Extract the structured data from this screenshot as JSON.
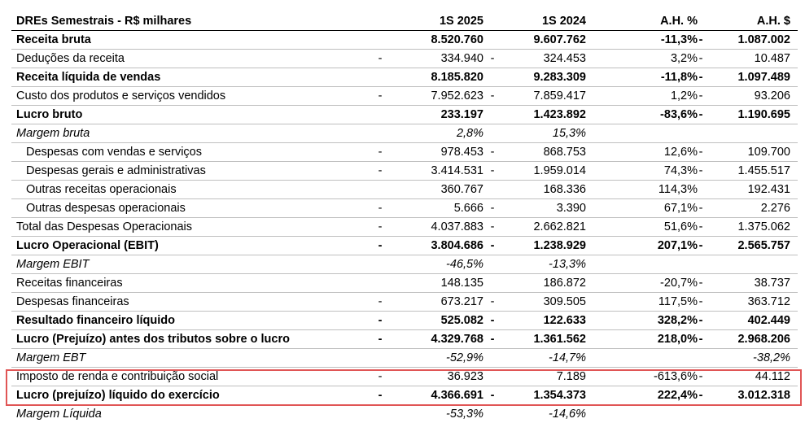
{
  "table": {
    "header": {
      "label": "DREs Semestrais - R$ milhares",
      "col1": "1S 2025",
      "col2": "1S 2024",
      "col3": "A.H. %",
      "col4": "A.H. $"
    },
    "rows": [
      {
        "label": "Receita bruta",
        "s1": "",
        "v1": "8.520.760",
        "s2": "",
        "v2": "9.607.762",
        "v3": "-11,3%",
        "s3": "-",
        "v4": "1.087.002",
        "style": "bold"
      },
      {
        "label": "Deduções da receita",
        "s1": "-",
        "v1": "334.940",
        "s2": "-",
        "v2": "324.453",
        "v3": "3,2%",
        "s3": "-",
        "v4": "10.487",
        "style": ""
      },
      {
        "label": "Receita líquida de vendas",
        "s1": "",
        "v1": "8.185.820",
        "s2": "",
        "v2": "9.283.309",
        "v3": "-11,8%",
        "s3": "-",
        "v4": "1.097.489",
        "style": "bold"
      },
      {
        "label": "Custo dos produtos e serviços vendidos",
        "s1": "-",
        "v1": "7.952.623",
        "s2": "-",
        "v2": "7.859.417",
        "v3": "1,2%",
        "s3": "-",
        "v4": "93.206",
        "style": ""
      },
      {
        "label": "Lucro bruto",
        "s1": "",
        "v1": "233.197",
        "s2": "",
        "v2": "1.423.892",
        "v3": "-83,6%",
        "s3": "-",
        "v4": "1.190.695",
        "style": "bold"
      },
      {
        "label": "Margem bruta",
        "s1": "",
        "v1": "2,8%",
        "s2": "",
        "v2": "15,3%",
        "v3": "",
        "s3": "",
        "v4": "",
        "style": "italic"
      },
      {
        "label": "Despesas com vendas e serviços",
        "s1": "-",
        "v1": "978.453",
        "s2": "-",
        "v2": "868.753",
        "v3": "12,6%",
        "s3": "-",
        "v4": "109.700",
        "style": "indent"
      },
      {
        "label": "Despesas gerais e administrativas",
        "s1": "-",
        "v1": "3.414.531",
        "s2": "-",
        "v2": "1.959.014",
        "v3": "74,3%",
        "s3": "-",
        "v4": "1.455.517",
        "style": "indent"
      },
      {
        "label": "Outras receitas operacionais",
        "s1": "",
        "v1": "360.767",
        "s2": "",
        "v2": "168.336",
        "v3": "114,3%",
        "s3": "",
        "v4": "192.431",
        "style": "indent"
      },
      {
        "label": "Outras despesas operacionais",
        "s1": "-",
        "v1": "5.666",
        "s2": "-",
        "v2": "3.390",
        "v3": "67,1%",
        "s3": "-",
        "v4": "2.276",
        "style": "indent"
      },
      {
        "label": "Total das Despesas Operacionais",
        "s1": "-",
        "v1": "4.037.883",
        "s2": "-",
        "v2": "2.662.821",
        "v3": "51,6%",
        "s3": "-",
        "v4": "1.375.062",
        "style": ""
      },
      {
        "label": "Lucro Operacional (EBIT)",
        "s1": "-",
        "v1": "3.804.686",
        "s2": "-",
        "v2": "1.238.929",
        "v3": "207,1%",
        "s3": "-",
        "v4": "2.565.757",
        "style": "bold"
      },
      {
        "label": "Margem EBIT",
        "s1": "",
        "v1": "-46,5%",
        "s2": "",
        "v2": "-13,3%",
        "v3": "",
        "s3": "",
        "v4": "",
        "style": "italic"
      },
      {
        "label": "Receitas financeiras",
        "s1": "",
        "v1": "148.135",
        "s2": "",
        "v2": "186.872",
        "v3": "-20,7%",
        "s3": "-",
        "v4": "38.737",
        "style": ""
      },
      {
        "label": "Despesas financeiras",
        "s1": "-",
        "v1": "673.217",
        "s2": "-",
        "v2": "309.505",
        "v3": "117,5%",
        "s3": "-",
        "v4": "363.712",
        "style": ""
      },
      {
        "label": "Resultado financeiro líquido",
        "s1": "-",
        "v1": "525.082",
        "s2": "-",
        "v2": "122.633",
        "v3": "328,2%",
        "s3": "-",
        "v4": "402.449",
        "style": "bold"
      },
      {
        "label": "Lucro (Prejuízo) antes dos tributos sobre o lucro",
        "s1": "-",
        "v1": "4.329.768",
        "s2": "-",
        "v2": "1.361.562",
        "v3": "218,0%",
        "s3": "-",
        "v4": "2.968.206",
        "style": "bold"
      },
      {
        "label": "Margem EBT",
        "s1": "",
        "v1": "-52,9%",
        "s2": "",
        "v2": "-14,7%",
        "v3": "",
        "s3": "",
        "v4": "-38,2%",
        "style": "italic"
      },
      {
        "label": "Imposto de renda e contribuição social",
        "s1": "-",
        "v1": "36.923",
        "s2": "",
        "v2": "7.189",
        "v3": "-613,6%",
        "s3": "-",
        "v4": "44.112",
        "style": ""
      },
      {
        "label": "Lucro (prejuízo) líquido do exercício",
        "s1": "-",
        "v1": "4.366.691",
        "s2": "-",
        "v2": "1.354.373",
        "v3": "222,4%",
        "s3": "-",
        "v4": "3.012.318",
        "style": "bold"
      },
      {
        "label": "Margem Líquida",
        "s1": "",
        "v1": "-53,3%",
        "s2": "",
        "v2": "-14,6%",
        "v3": "",
        "s3": "",
        "v4": "",
        "style": "italic last"
      }
    ]
  },
  "highlight": {
    "color": "#e05555"
  }
}
